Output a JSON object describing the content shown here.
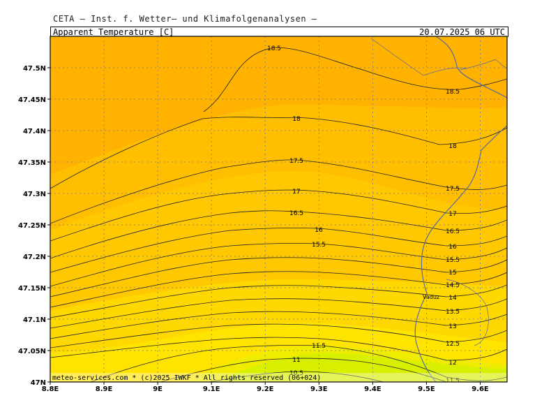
{
  "header": {
    "institute": "CETA — Inst. f. Wetter— und Klimafolgenanalysen —",
    "parameter": "Apparent_Temperature_[C]",
    "valid_time": "20.07.2025 06 UTC"
  },
  "footer": {
    "credit": "meteo-services.com * (c)2025 IWKF * All rights reserved (06+024)"
  },
  "map": {
    "place_labels": [
      "Vaduz"
    ],
    "x_ticks": [
      "8.8E",
      "8.9E",
      "9E",
      "9.1E",
      "9.2E",
      "9.3E",
      "9.4E",
      "9.5E",
      "9.6E"
    ],
    "y_ticks": [
      "47N",
      "47.05N",
      "47.1N",
      "47.15N",
      "47.2N",
      "47.25N",
      "47.3N",
      "47.35N",
      "47.4N",
      "47.45N",
      "47.5N"
    ],
    "lon_range": [
      8.8,
      9.65
    ],
    "lat_range": [
      47.0,
      47.55
    ],
    "contour_labels": [
      "18.5",
      "18",
      "17.5",
      "17",
      "16.5",
      "16",
      "15.5",
      "15",
      "14.5",
      "14",
      "13.5",
      "13",
      "12.5",
      "12",
      "11.5",
      "11",
      "10.5"
    ],
    "colors": {
      "band_19": "#ffb200",
      "band_18": "#ffbe00",
      "band_17": "#ffc800",
      "band_15": "#ffd800",
      "band_13": "#ffe400",
      "band_11": "#f0ec00",
      "band_10": "#d8f000",
      "contour": "#222222",
      "border": "#5a6a9a"
    }
  }
}
